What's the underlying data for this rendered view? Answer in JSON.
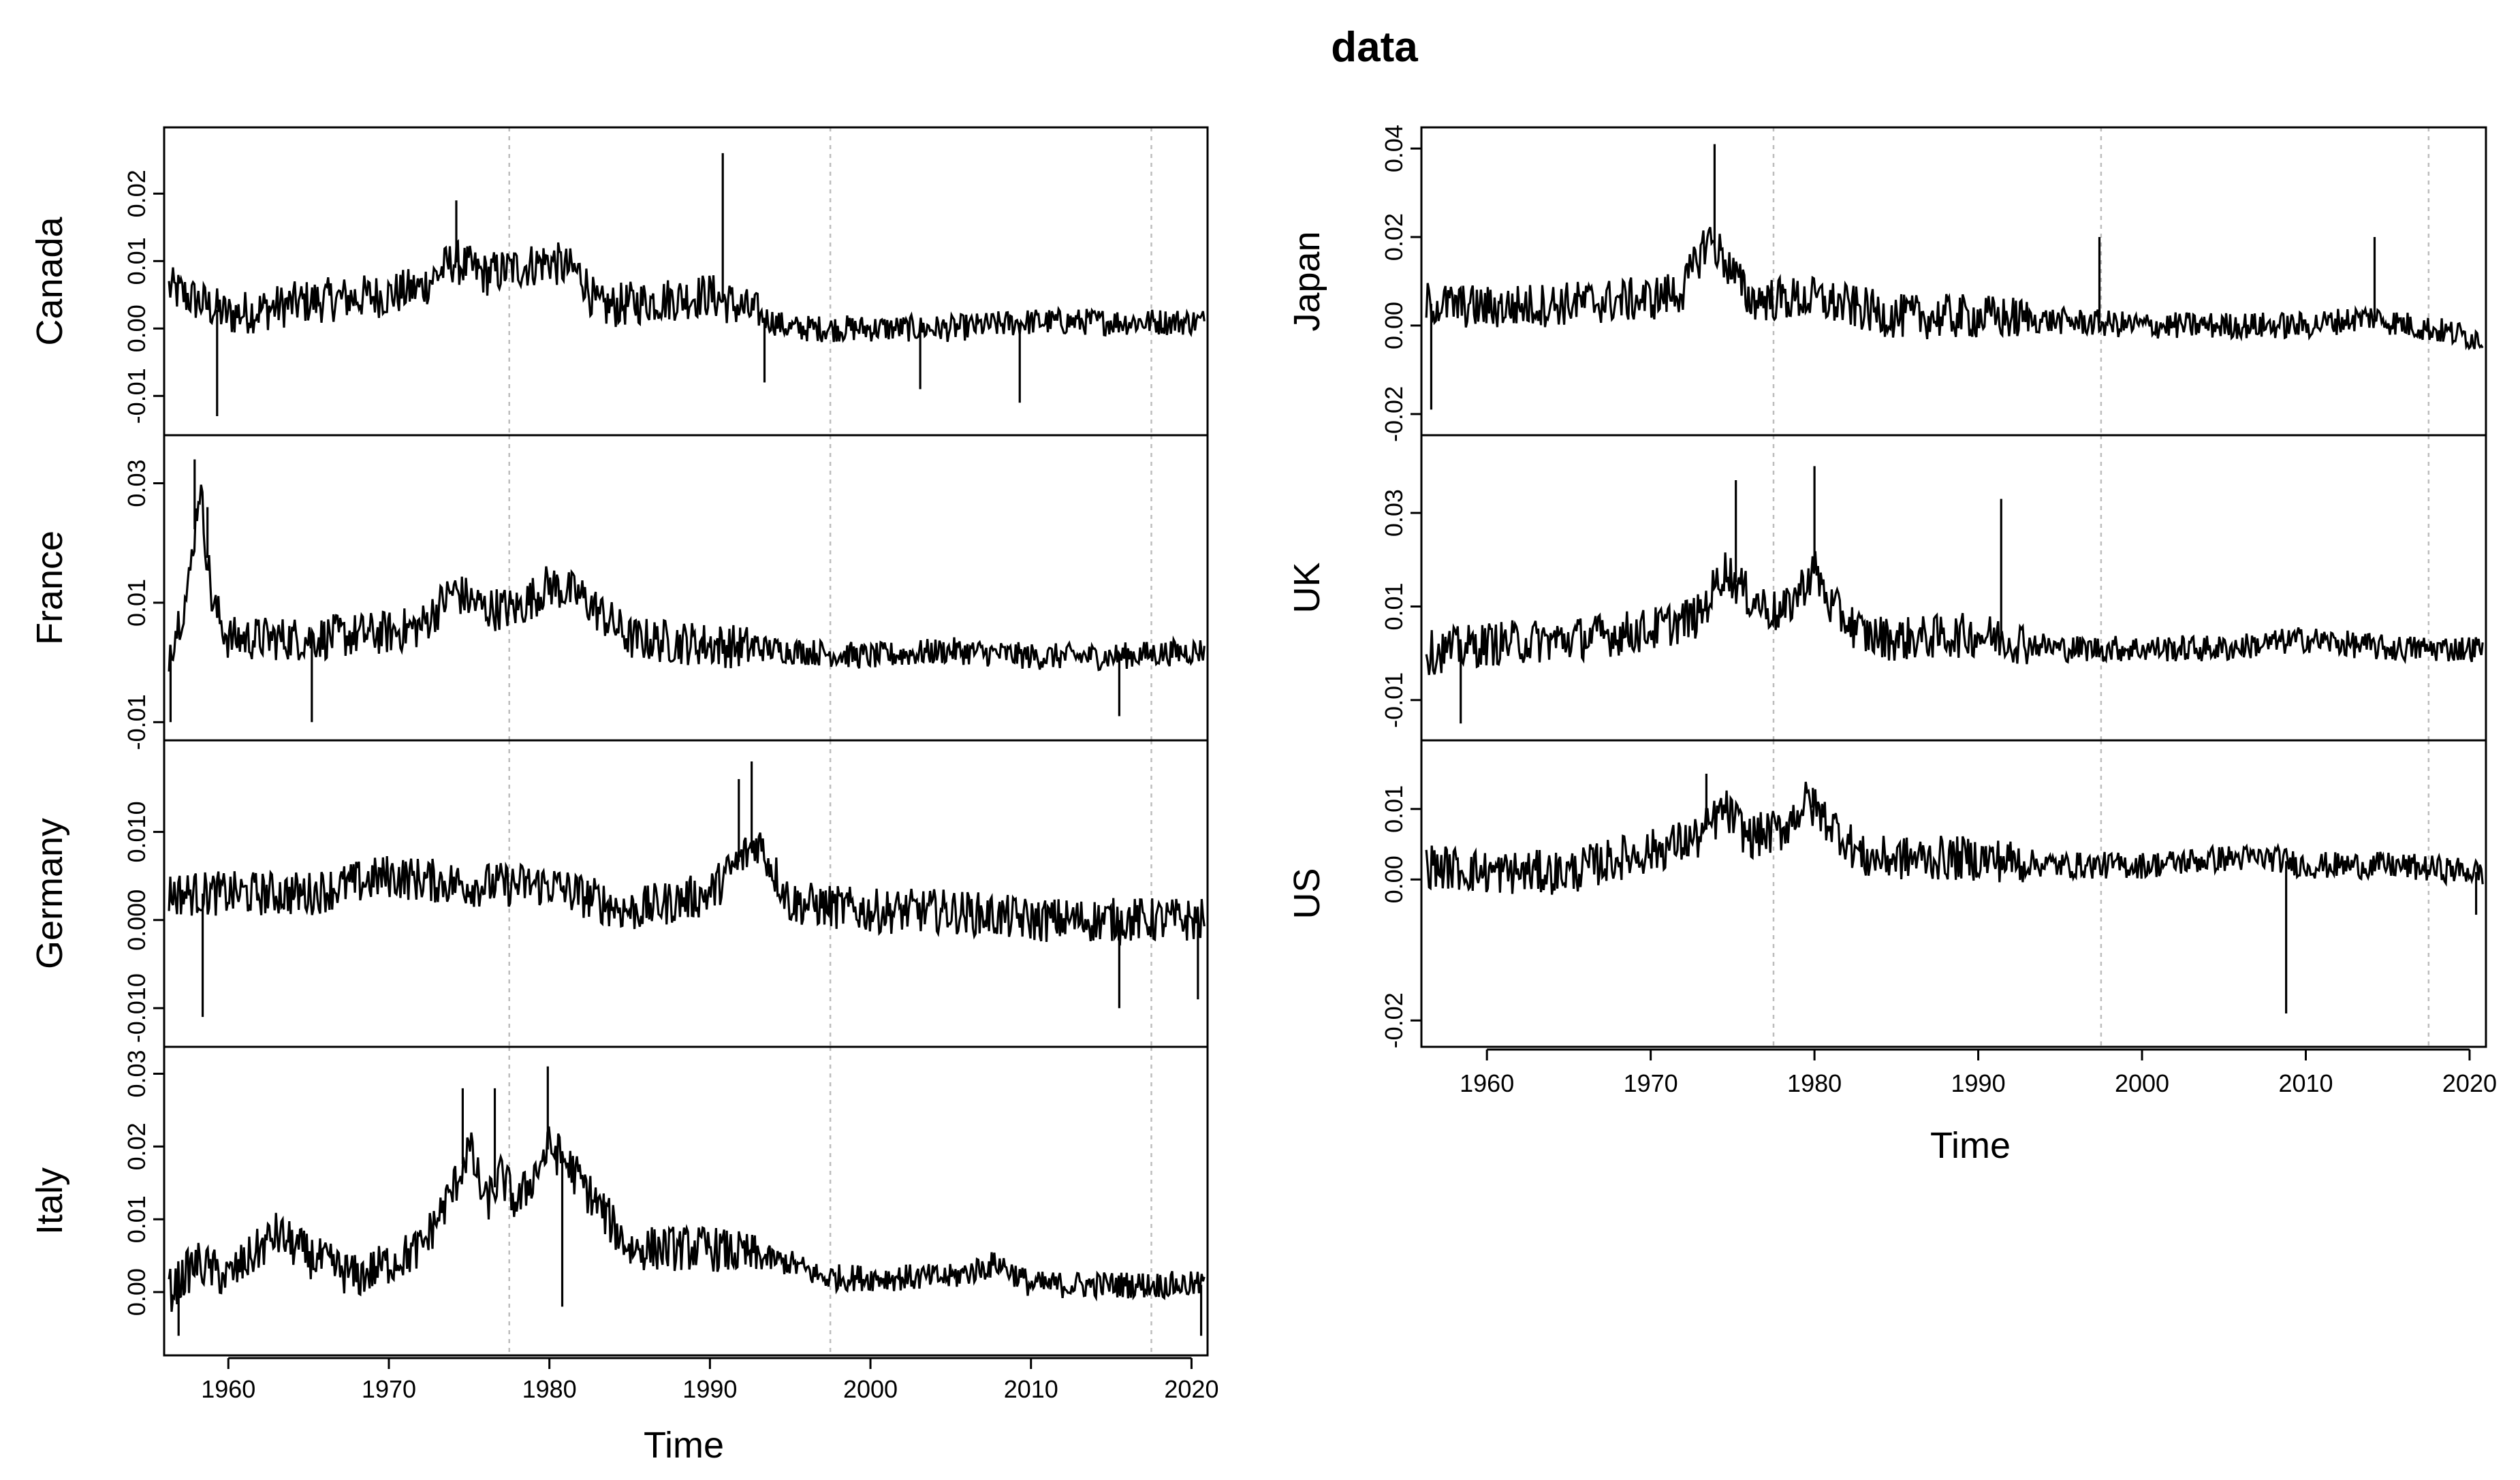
{
  "chart_data": [
    {
      "type": "line",
      "title": "data",
      "xlabel": "Time",
      "xlim": [
        1956,
        2021
      ],
      "x_ticks": [
        "1960",
        "1970",
        "1980",
        "1990",
        "2000",
        "2010",
        "2020"
      ],
      "series": [
        {
          "name": "Canada",
          "ylim": [
            -0.014,
            0.028
          ],
          "y_ticks": [
            "-0.01",
            "0.00",
            "0.01",
            "0.02"
          ],
          "keypoints": [
            [
              1956.3,
              0.006
            ],
            [
              1960,
              0.002
            ],
            [
              1965,
              0.004
            ],
            [
              1970,
              0.005
            ],
            [
              1972,
              0.006
            ],
            [
              1974,
              0.01
            ],
            [
              1976,
              0.008
            ],
            [
              1980,
              0.01
            ],
            [
              1982,
              0.008
            ],
            [
              1983,
              0.003
            ],
            [
              1986,
              0.004
            ],
            [
              1990,
              0.005
            ],
            [
              1995,
              0.0
            ],
            [
              2000,
              0.0
            ],
            [
              2005,
              0.0
            ],
            [
              2010,
              0.001
            ],
            [
              2015,
              0.001
            ],
            [
              2020.8,
              0.001
            ]
          ],
          "spikes": [
            [
              1959.3,
              -0.013
            ],
            [
              1974.2,
              0.019
            ],
            [
              1990.8,
              0.026
            ],
            [
              1993.4,
              -0.008
            ],
            [
              2009.3,
              -0.011
            ],
            [
              2003.1,
              -0.009
            ]
          ]
        },
        {
          "name": "France",
          "ylim": [
            -0.011,
            0.036
          ],
          "y_ticks": [
            "-0.01",
            "0.01",
            "0.03"
          ],
          "keypoints": [
            [
              1956.3,
              0.002
            ],
            [
              1957.5,
              0.012
            ],
            [
              1958.2,
              0.03
            ],
            [
              1959,
              0.01
            ],
            [
              1960,
              0.004
            ],
            [
              1965,
              0.004
            ],
            [
              1970,
              0.005
            ],
            [
              1972,
              0.006
            ],
            [
              1974,
              0.012
            ],
            [
              1976,
              0.009
            ],
            [
              1978,
              0.009
            ],
            [
              1980,
              0.013
            ],
            [
              1982,
              0.011
            ],
            [
              1985,
              0.004
            ],
            [
              1990,
              0.003
            ],
            [
              1995,
              0.002
            ],
            [
              2000,
              0.001
            ],
            [
              2005,
              0.002
            ],
            [
              2010,
              0.001
            ],
            [
              2015,
              0.001
            ],
            [
              2020.8,
              0.002
            ]
          ],
          "spikes": [
            [
              1957.9,
              0.034
            ],
            [
              1958.7,
              0.026
            ],
            [
              1956.4,
              -0.01
            ],
            [
              1965.2,
              -0.01
            ],
            [
              2015.5,
              -0.009
            ]
          ]
        },
        {
          "name": "Germany",
          "ylim": [
            -0.013,
            0.019
          ],
          "y_ticks": [
            "-0.010",
            "0.000",
            "0.010"
          ],
          "keypoints": [
            [
              1956.3,
              0.003
            ],
            [
              1960,
              0.003
            ],
            [
              1965,
              0.003
            ],
            [
              1970,
              0.005
            ],
            [
              1975,
              0.004
            ],
            [
              1980,
              0.004
            ],
            [
              1985,
              0.001
            ],
            [
              1990,
              0.003
            ],
            [
              1992,
              0.007
            ],
            [
              1993,
              0.009
            ],
            [
              1995,
              0.002
            ],
            [
              2000,
              0.001
            ],
            [
              2005,
              0.001
            ],
            [
              2010,
              0.0
            ],
            [
              2015,
              0.0
            ],
            [
              2020.8,
              0.0
            ]
          ],
          "spikes": [
            [
              1958.4,
              -0.011
            ],
            [
              1992.6,
              0.018
            ],
            [
              1991.8,
              0.016
            ],
            [
              2015.5,
              -0.01
            ],
            [
              2020.4,
              -0.009
            ]
          ]
        },
        {
          "name": "Italy",
          "ylim": [
            -0.007,
            0.032
          ],
          "y_ticks": [
            "0.00",
            "0.01",
            "0.02",
            "0.03"
          ],
          "keypoints": [
            [
              1956.3,
              0.0
            ],
            [
              1958,
              0.004
            ],
            [
              1960,
              0.002
            ],
            [
              1963,
              0.008
            ],
            [
              1965,
              0.005
            ],
            [
              1968,
              0.002
            ],
            [
              1970,
              0.004
            ],
            [
              1972,
              0.006
            ],
            [
              1974,
              0.014
            ],
            [
              1975,
              0.02
            ],
            [
              1976,
              0.012
            ],
            [
              1977,
              0.016
            ],
            [
              1978,
              0.012
            ],
            [
              1980,
              0.02
            ],
            [
              1981,
              0.018
            ],
            [
              1983,
              0.012
            ],
            [
              1985,
              0.006
            ],
            [
              1990,
              0.006
            ],
            [
              1995,
              0.004
            ],
            [
              1997,
              0.002
            ],
            [
              2000,
              0.002
            ],
            [
              2005,
              0.002
            ],
            [
              2008,
              0.004
            ],
            [
              2010,
              0.001
            ],
            [
              2015,
              0.001
            ],
            [
              2020.8,
              0.001
            ]
          ],
          "spikes": [
            [
              1974.6,
              0.028
            ],
            [
              1976.6,
              0.028
            ],
            [
              1979.9,
              0.031
            ],
            [
              1980.8,
              -0.002
            ],
            [
              1956.9,
              -0.006
            ],
            [
              2020.6,
              -0.006
            ]
          ]
        },
        {
          "name": "Japan",
          "ylim": [
            -0.022,
            0.042
          ],
          "y_ticks": [
            "-0.02",
            "0.00",
            "0.02",
            "0.04"
          ],
          "keypoints": [
            [
              1956.3,
              0.005
            ],
            [
              1960,
              0.004
            ],
            [
              1965,
              0.005
            ],
            [
              1970,
              0.006
            ],
            [
              1972,
              0.008
            ],
            [
              1973.5,
              0.02
            ],
            [
              1974.5,
              0.015
            ],
            [
              1976,
              0.006
            ],
            [
              1980,
              0.006
            ],
            [
              1985,
              0.002
            ],
            [
              1990,
              0.002
            ],
            [
              1995,
              0.001
            ],
            [
              2000,
              0.0
            ],
            [
              2005,
              0.0
            ],
            [
              2010,
              0.0
            ],
            [
              2014,
              0.002
            ],
            [
              2015,
              0.001
            ],
            [
              2020.8,
              -0.003
            ]
          ],
          "spikes": [
            [
              1973.9,
              0.041
            ],
            [
              1956.6,
              -0.019
            ],
            [
              1997.4,
              0.02
            ],
            [
              2014.2,
              0.02
            ]
          ]
        },
        {
          "name": "UK",
          "ylim": [
            -0.016,
            0.044
          ],
          "y_ticks": [
            "-0.01",
            "0.01",
            "0.03"
          ],
          "keypoints": [
            [
              1956.3,
              0.0
            ],
            [
              1960,
              0.002
            ],
            [
              1965,
              0.003
            ],
            [
              1970,
              0.005
            ],
            [
              1973,
              0.008
            ],
            [
              1974.5,
              0.018
            ],
            [
              1976,
              0.012
            ],
            [
              1978,
              0.008
            ],
            [
              1980,
              0.018
            ],
            [
              1981,
              0.01
            ],
            [
              1983,
              0.004
            ],
            [
              1985,
              0.003
            ],
            [
              1990,
              0.004
            ],
            [
              1995,
              0.001
            ],
            [
              2000,
              0.001
            ],
            [
              2005,
              0.001
            ],
            [
              2010,
              0.003
            ],
            [
              2015,
              0.001
            ],
            [
              2020.8,
              0.001
            ]
          ],
          "spikes": [
            [
              1975.2,
              0.037
            ],
            [
              1980.0,
              0.04
            ],
            [
              1991.4,
              0.033
            ],
            [
              1958.4,
              -0.015
            ]
          ]
        },
        {
          "name": "US",
          "ylim": [
            -0.022,
            0.018
          ],
          "y_ticks": [
            "-0.02",
            "0.00",
            "0.01"
          ],
          "keypoints": [
            [
              1956.3,
              0.002
            ],
            [
              1960,
              0.001
            ],
            [
              1965,
              0.001
            ],
            [
              1968,
              0.003
            ],
            [
              1970,
              0.004
            ],
            [
              1973,
              0.006
            ],
            [
              1974.5,
              0.01
            ],
            [
              1976,
              0.006
            ],
            [
              1978,
              0.007
            ],
            [
              1979.5,
              0.011
            ],
            [
              1981,
              0.008
            ],
            [
              1983,
              0.003
            ],
            [
              1985,
              0.003
            ],
            [
              1990,
              0.003
            ],
            [
              1995,
              0.002
            ],
            [
              2000,
              0.002
            ],
            [
              2005,
              0.003
            ],
            [
              2008,
              0.003
            ],
            [
              2010,
              0.002
            ],
            [
              2015,
              0.002
            ],
            [
              2020.8,
              0.001
            ]
          ],
          "spikes": [
            [
              1973.4,
              0.015
            ],
            [
              1979.9,
              0.013
            ],
            [
              2008.8,
              -0.019
            ],
            [
              2020.4,
              -0.005
            ]
          ]
        }
      ]
    }
  ]
}
